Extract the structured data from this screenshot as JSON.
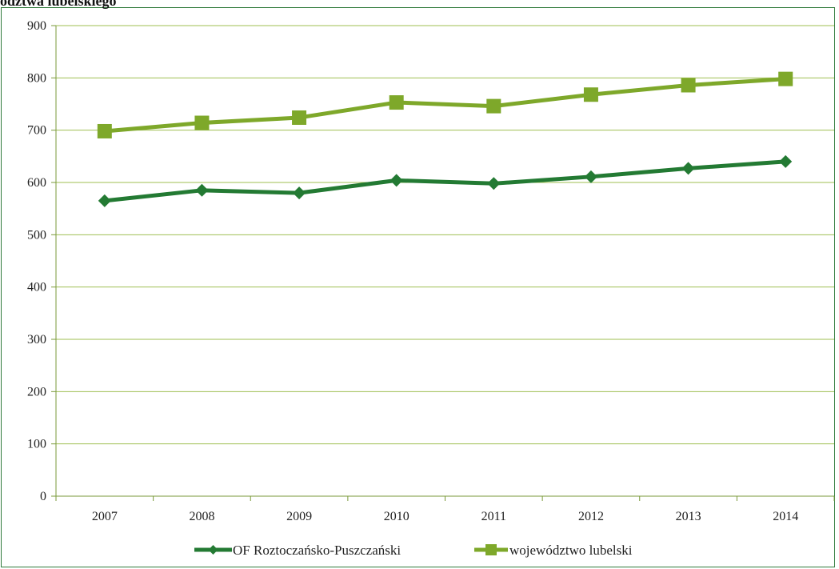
{
  "caption": "odztwa lubelskiego",
  "chart_data": {
    "type": "line",
    "x": [
      "2007",
      "2008",
      "2009",
      "2010",
      "2011",
      "2012",
      "2013",
      "2014"
    ],
    "ylim": [
      0,
      900
    ],
    "yticks": [
      0,
      100,
      200,
      300,
      400,
      500,
      600,
      700,
      800,
      900
    ],
    "grid": true,
    "legend_position": "bottom",
    "series": [
      {
        "name": "OF Roztoczańsko-Puszczański",
        "values": [
          565,
          585,
          580,
          604,
          598,
          611,
          627,
          640
        ],
        "color": "#237a33",
        "marker": "diamond"
      },
      {
        "name": "województwo lubelskie",
        "legend_label": "województwo lubelski",
        "values": [
          698,
          714,
          724,
          753,
          746,
          768,
          786,
          798
        ],
        "color": "#7ea82a",
        "marker": "square"
      }
    ]
  }
}
